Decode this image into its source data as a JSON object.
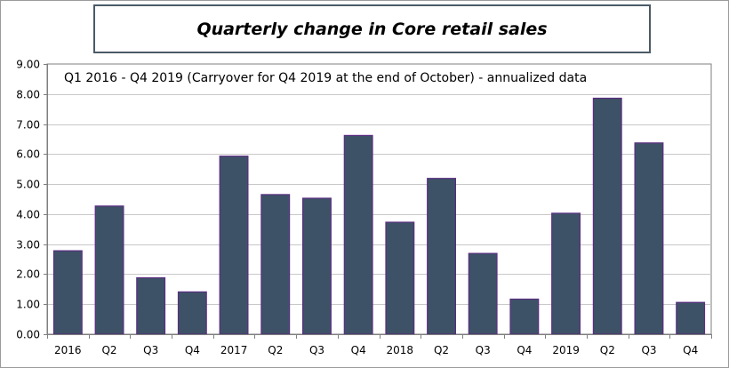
{
  "title": "Quarterly change in Core retail sales",
  "subtitle": "Q1 2016 - Q4 2019 (Carryover for Q4 2019 at the end of October) - annualized data",
  "colors": {
    "bar_fill": "#3d5266",
    "bar_stroke": "#5a2d82",
    "grid": "#c8c8c8",
    "axis": "#7f7f7f"
  },
  "chart_data": {
    "type": "bar",
    "title": "Quarterly change in Core retail sales",
    "subtitle": "Q1 2016 - Q4 2019 (Carryover for Q4 2019 at the end of October) - annualized data",
    "categories": [
      "2016",
      "Q2",
      "Q3",
      "Q4",
      "2017",
      "Q2",
      "Q3",
      "Q4",
      "2018",
      "Q2",
      "Q3",
      "Q4",
      "2019",
      "Q2",
      "Q3",
      "Q4"
    ],
    "values": [
      2.78,
      4.27,
      1.88,
      1.41,
      5.93,
      4.65,
      4.53,
      6.62,
      3.73,
      5.19,
      2.69,
      1.17,
      4.03,
      7.86,
      6.37,
      1.06
    ],
    "ylim": [
      0,
      9
    ],
    "yticks": [
      "0.00",
      "1.00",
      "2.00",
      "3.00",
      "4.00",
      "5.00",
      "6.00",
      "7.00",
      "8.00",
      "9.00"
    ],
    "xlabel": "",
    "ylabel": "",
    "grid": true,
    "legend": "none"
  }
}
